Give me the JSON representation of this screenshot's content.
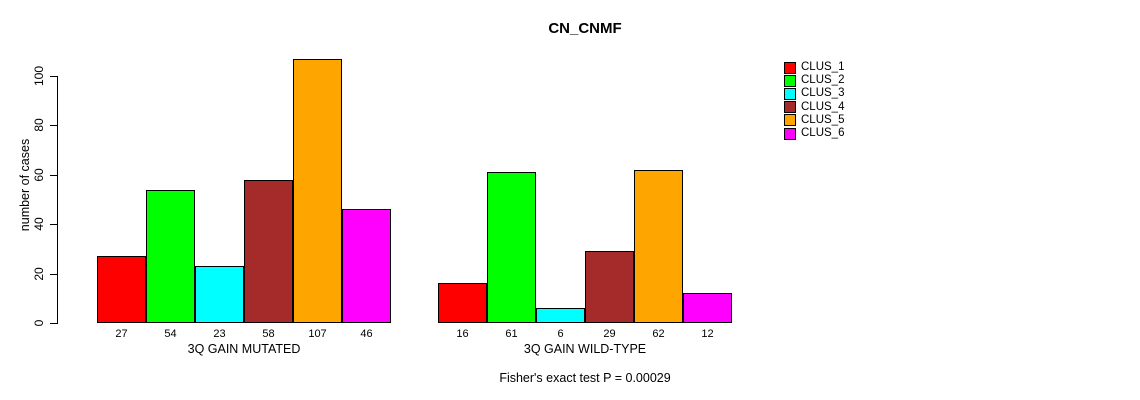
{
  "title": "CN_CNMF",
  "footer": "Fisher's exact test P = 0.00029",
  "y_axis": {
    "label": "number of cases",
    "ticks": [
      0,
      20,
      40,
      60,
      80,
      100
    ]
  },
  "legend": {
    "position": "right",
    "items": [
      {
        "label": "CLUS_1",
        "color": "#FF0000"
      },
      {
        "label": "CLUS_2",
        "color": "#00FF00"
      },
      {
        "label": "CLUS_3",
        "color": "#00FFFF"
      },
      {
        "label": "CLUS_4",
        "color": "#A52A2A"
      },
      {
        "label": "CLUS_5",
        "color": "#FFA500"
      },
      {
        "label": "CLUS_6",
        "color": "#FF00FF"
      }
    ]
  },
  "chart_data": {
    "type": "bar",
    "title": "CN_CNMF",
    "xlabel": "",
    "ylabel": "number of cases",
    "ylim": [
      0,
      110
    ],
    "yticks": [
      0,
      20,
      40,
      60,
      80,
      100
    ],
    "grid": false,
    "legend_position": "right",
    "bar_value_labels": true,
    "categories": [
      "3Q GAIN MUTATED",
      "3Q GAIN WILD-TYPE"
    ],
    "series": [
      {
        "name": "CLUS_1",
        "color": "#FF0000",
        "values": [
          27,
          16
        ]
      },
      {
        "name": "CLUS_2",
        "color": "#00FF00",
        "values": [
          54,
          61
        ]
      },
      {
        "name": "CLUS_3",
        "color": "#00FFFF",
        "values": [
          23,
          6
        ]
      },
      {
        "name": "CLUS_4",
        "color": "#A52A2A",
        "values": [
          58,
          29
        ]
      },
      {
        "name": "CLUS_5",
        "color": "#FFA500",
        "values": [
          107,
          62
        ]
      },
      {
        "name": "CLUS_6",
        "color": "#FF00FF",
        "values": [
          46,
          12
        ]
      }
    ],
    "annotation": "Fisher's exact test P = 0.00029"
  }
}
